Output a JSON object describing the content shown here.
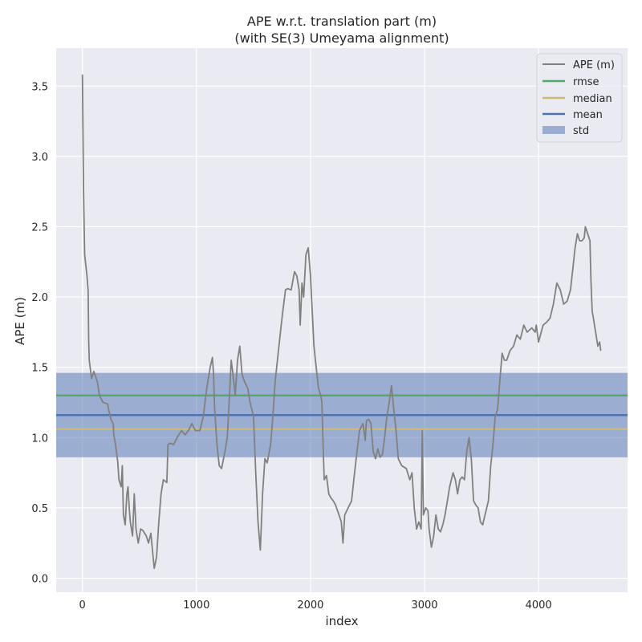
{
  "chart_data": {
    "type": "line",
    "title": "APE w.r.t. translation part (m)",
    "subtitle": "(with SE(3) Umeyama alignment)",
    "xlabel": "index",
    "ylabel": "APE (m)",
    "xlim": [
      -230,
      4780
    ],
    "ylim": [
      -0.1,
      3.77
    ],
    "xticks": [
      0,
      1000,
      2000,
      3000,
      4000
    ],
    "yticks": [
      0.0,
      0.5,
      1.0,
      1.5,
      2.0,
      2.5,
      3.0,
      3.5
    ],
    "xtick_labels": [
      "0",
      "1000",
      "2000",
      "3000",
      "4000"
    ],
    "ytick_labels": [
      "0.0",
      "0.5",
      "1.0",
      "1.5",
      "2.0",
      "2.5",
      "3.0",
      "3.5"
    ],
    "grid": true,
    "legend_position": "top-right",
    "legend": [
      "APE (m)",
      "rmse",
      "median",
      "mean",
      "std"
    ],
    "colors": {
      "ape": "#808080",
      "rmse": "#55a868",
      "median": "#ccb974",
      "mean": "#4c72b0",
      "std": "#4c72b0",
      "background": "#eaeaf2",
      "grid": "#ffffff"
    },
    "stats": {
      "rmse": 1.3,
      "median": 1.06,
      "mean": 1.16,
      "std_low": 0.86,
      "std_high": 1.46
    },
    "series": [
      {
        "name": "APE (m)",
        "points": [
          [
            0,
            3.58
          ],
          [
            10,
            2.75
          ],
          [
            20,
            2.3
          ],
          [
            40,
            2.15
          ],
          [
            50,
            2.05
          ],
          [
            55,
            1.7
          ],
          [
            60,
            1.55
          ],
          [
            80,
            1.42
          ],
          [
            100,
            1.47
          ],
          [
            130,
            1.4
          ],
          [
            150,
            1.3
          ],
          [
            180,
            1.25
          ],
          [
            220,
            1.24
          ],
          [
            230,
            1.2
          ],
          [
            250,
            1.13
          ],
          [
            270,
            1.1
          ],
          [
            275,
            1.02
          ],
          [
            290,
            0.95
          ],
          [
            310,
            0.83
          ],
          [
            320,
            0.7
          ],
          [
            340,
            0.65
          ],
          [
            350,
            0.8
          ],
          [
            360,
            0.45
          ],
          [
            375,
            0.38
          ],
          [
            390,
            0.6
          ],
          [
            400,
            0.65
          ],
          [
            410,
            0.5
          ],
          [
            420,
            0.4
          ],
          [
            440,
            0.3
          ],
          [
            455,
            0.6
          ],
          [
            470,
            0.35
          ],
          [
            490,
            0.25
          ],
          [
            510,
            0.35
          ],
          [
            530,
            0.34
          ],
          [
            560,
            0.3
          ],
          [
            580,
            0.25
          ],
          [
            600,
            0.32
          ],
          [
            620,
            0.15
          ],
          [
            630,
            0.07
          ],
          [
            650,
            0.15
          ],
          [
            670,
            0.4
          ],
          [
            690,
            0.6
          ],
          [
            710,
            0.7
          ],
          [
            740,
            0.68
          ],
          [
            750,
            0.95
          ],
          [
            770,
            0.96
          ],
          [
            800,
            0.95
          ],
          [
            830,
            1.0
          ],
          [
            870,
            1.05
          ],
          [
            900,
            1.02
          ],
          [
            930,
            1.05
          ],
          [
            960,
            1.1
          ],
          [
            990,
            1.05
          ],
          [
            1030,
            1.05
          ],
          [
            1060,
            1.15
          ],
          [
            1090,
            1.35
          ],
          [
            1120,
            1.5
          ],
          [
            1140,
            1.57
          ],
          [
            1150,
            1.45
          ],
          [
            1160,
            1.2
          ],
          [
            1180,
            0.95
          ],
          [
            1200,
            0.8
          ],
          [
            1220,
            0.78
          ],
          [
            1250,
            0.9
          ],
          [
            1270,
            1.0
          ],
          [
            1290,
            1.3
          ],
          [
            1305,
            1.55
          ],
          [
            1320,
            1.45
          ],
          [
            1340,
            1.3
          ],
          [
            1360,
            1.55
          ],
          [
            1380,
            1.65
          ],
          [
            1400,
            1.45
          ],
          [
            1420,
            1.4
          ],
          [
            1450,
            1.35
          ],
          [
            1470,
            1.25
          ],
          [
            1500,
            1.15
          ],
          [
            1520,
            0.75
          ],
          [
            1540,
            0.4
          ],
          [
            1560,
            0.2
          ],
          [
            1580,
            0.6
          ],
          [
            1600,
            0.85
          ],
          [
            1620,
            0.82
          ],
          [
            1650,
            0.95
          ],
          [
            1670,
            1.15
          ],
          [
            1690,
            1.4
          ],
          [
            1710,
            1.55
          ],
          [
            1730,
            1.7
          ],
          [
            1750,
            1.85
          ],
          [
            1780,
            2.05
          ],
          [
            1800,
            2.06
          ],
          [
            1830,
            2.05
          ],
          [
            1860,
            2.18
          ],
          [
            1880,
            2.15
          ],
          [
            1900,
            2.05
          ],
          [
            1910,
            1.8
          ],
          [
            1925,
            2.1
          ],
          [
            1940,
            2.0
          ],
          [
            1960,
            2.3
          ],
          [
            1980,
            2.35
          ],
          [
            2000,
            2.15
          ],
          [
            2030,
            1.65
          ],
          [
            2050,
            1.5
          ],
          [
            2070,
            1.35
          ],
          [
            2090,
            1.3
          ],
          [
            2100,
            1.25
          ],
          [
            2110,
            0.95
          ],
          [
            2120,
            0.7
          ],
          [
            2140,
            0.73
          ],
          [
            2160,
            0.6
          ],
          [
            2180,
            0.57
          ],
          [
            2200,
            0.55
          ],
          [
            2220,
            0.52
          ],
          [
            2250,
            0.45
          ],
          [
            2270,
            0.4
          ],
          [
            2285,
            0.25
          ],
          [
            2300,
            0.45
          ],
          [
            2330,
            0.5
          ],
          [
            2360,
            0.55
          ],
          [
            2380,
            0.7
          ],
          [
            2400,
            0.85
          ],
          [
            2430,
            1.05
          ],
          [
            2460,
            1.1
          ],
          [
            2480,
            0.98
          ],
          [
            2490,
            1.12
          ],
          [
            2510,
            1.13
          ],
          [
            2530,
            1.1
          ],
          [
            2550,
            0.9
          ],
          [
            2570,
            0.85
          ],
          [
            2590,
            0.92
          ],
          [
            2610,
            0.86
          ],
          [
            2630,
            0.88
          ],
          [
            2650,
            1.0
          ],
          [
            2670,
            1.15
          ],
          [
            2690,
            1.25
          ],
          [
            2710,
            1.37
          ],
          [
            2730,
            1.2
          ],
          [
            2750,
            1.05
          ],
          [
            2770,
            0.85
          ],
          [
            2800,
            0.8
          ],
          [
            2840,
            0.78
          ],
          [
            2870,
            0.7
          ],
          [
            2890,
            0.75
          ],
          [
            2910,
            0.5
          ],
          [
            2930,
            0.35
          ],
          [
            2950,
            0.4
          ],
          [
            2970,
            0.35
          ],
          [
            2980,
            1.05
          ],
          [
            2990,
            0.45
          ],
          [
            3010,
            0.5
          ],
          [
            3030,
            0.48
          ],
          [
            3040,
            0.35
          ],
          [
            3060,
            0.22
          ],
          [
            3080,
            0.3
          ],
          [
            3100,
            0.45
          ],
          [
            3120,
            0.35
          ],
          [
            3140,
            0.33
          ],
          [
            3160,
            0.38
          ],
          [
            3180,
            0.45
          ],
          [
            3200,
            0.55
          ],
          [
            3220,
            0.65
          ],
          [
            3250,
            0.75
          ],
          [
            3270,
            0.7
          ],
          [
            3290,
            0.6
          ],
          [
            3310,
            0.7
          ],
          [
            3330,
            0.72
          ],
          [
            3350,
            0.7
          ],
          [
            3370,
            0.9
          ],
          [
            3390,
            1.0
          ],
          [
            3410,
            0.85
          ],
          [
            3430,
            0.55
          ],
          [
            3450,
            0.52
          ],
          [
            3470,
            0.5
          ],
          [
            3490,
            0.4
          ],
          [
            3510,
            0.38
          ],
          [
            3530,
            0.45
          ],
          [
            3560,
            0.55
          ],
          [
            3580,
            0.8
          ],
          [
            3600,
            0.95
          ],
          [
            3620,
            1.15
          ],
          [
            3640,
            1.2
          ],
          [
            3660,
            1.4
          ],
          [
            3680,
            1.6
          ],
          [
            3700,
            1.55
          ],
          [
            3720,
            1.55
          ],
          [
            3750,
            1.62
          ],
          [
            3780,
            1.65
          ],
          [
            3810,
            1.73
          ],
          [
            3840,
            1.7
          ],
          [
            3870,
            1.8
          ],
          [
            3900,
            1.75
          ],
          [
            3940,
            1.78
          ],
          [
            3970,
            1.75
          ],
          [
            3980,
            1.8
          ],
          [
            4000,
            1.68
          ],
          [
            4040,
            1.8
          ],
          [
            4070,
            1.82
          ],
          [
            4100,
            1.85
          ],
          [
            4130,
            1.95
          ],
          [
            4160,
            2.1
          ],
          [
            4190,
            2.05
          ],
          [
            4220,
            1.95
          ],
          [
            4250,
            1.97
          ],
          [
            4280,
            2.05
          ],
          [
            4300,
            2.2
          ],
          [
            4320,
            2.35
          ],
          [
            4340,
            2.45
          ],
          [
            4360,
            2.4
          ],
          [
            4380,
            2.4
          ],
          [
            4400,
            2.42
          ],
          [
            4410,
            2.5
          ],
          [
            4430,
            2.45
          ],
          [
            4450,
            2.4
          ],
          [
            4460,
            2.1
          ],
          [
            4470,
            1.9
          ],
          [
            4480,
            1.85
          ],
          [
            4500,
            1.75
          ],
          [
            4520,
            1.65
          ],
          [
            4535,
            1.68
          ],
          [
            4545,
            1.62
          ]
        ]
      },
      {
        "name": "rmse",
        "value": 1.3
      },
      {
        "name": "median",
        "value": 1.06
      },
      {
        "name": "mean",
        "value": 1.16
      },
      {
        "name": "std",
        "range": [
          0.86,
          1.46
        ]
      }
    ]
  }
}
